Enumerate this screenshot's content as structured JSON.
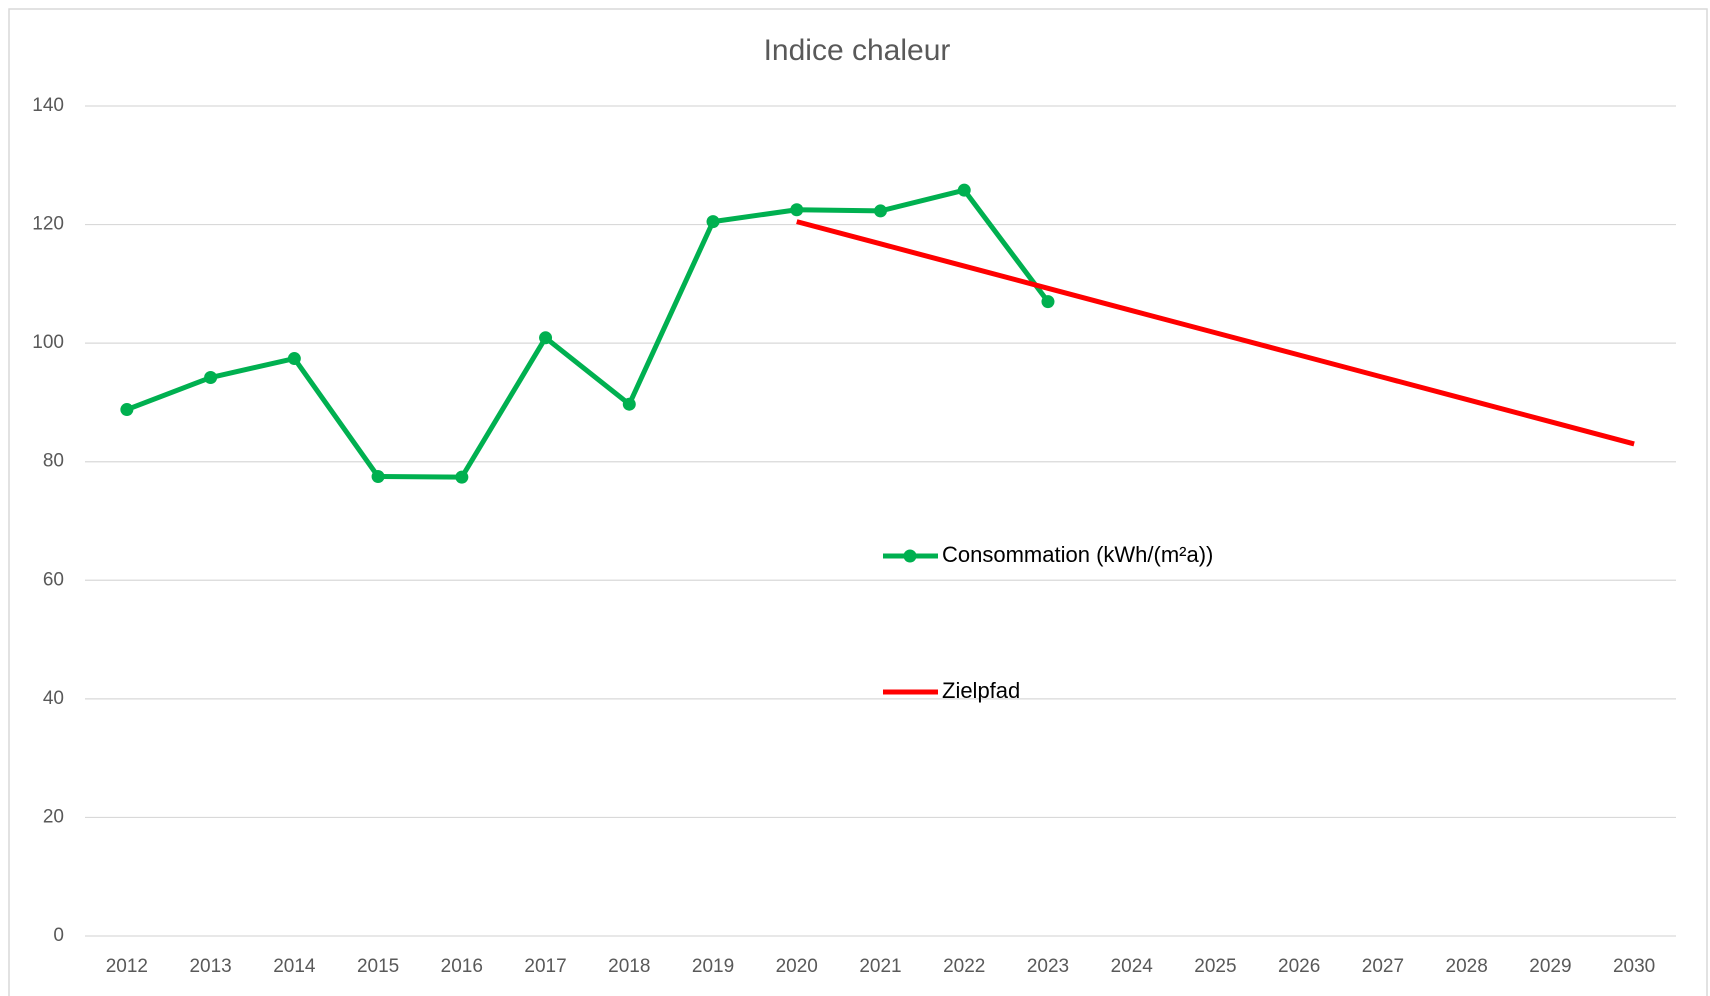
{
  "chart_data": {
    "type": "line",
    "title": "Indice chaleur",
    "categories": [
      "2012",
      "2013",
      "2014",
      "2015",
      "2016",
      "2017",
      "2018",
      "2019",
      "2020",
      "2021",
      "2022",
      "2023",
      "2024",
      "2025",
      "2026",
      "2027",
      "2028",
      "2029",
      "2030"
    ],
    "series": [
      {
        "name": "Consommation (kWh/(m²a))",
        "color": "#00b050",
        "markers": true,
        "values": [
          88.8,
          94.2,
          97.4,
          77.5,
          77.4,
          100.9,
          89.7,
          120.5,
          122.5,
          122.3,
          125.8,
          107,
          null,
          null,
          null,
          null,
          null,
          null,
          null
        ]
      },
      {
        "name": "Zielpfad",
        "color": "#ff0000",
        "markers": false,
        "values": [
          null,
          null,
          null,
          null,
          null,
          null,
          null,
          null,
          120.5,
          116.75,
          113,
          109.25,
          105.5,
          101.75,
          98,
          94.25,
          90.5,
          86.75,
          83
        ]
      }
    ],
    "ylim": [
      0,
      140
    ],
    "yticks": [
      0,
      20,
      40,
      60,
      80,
      100,
      120,
      140
    ],
    "grid": true
  }
}
